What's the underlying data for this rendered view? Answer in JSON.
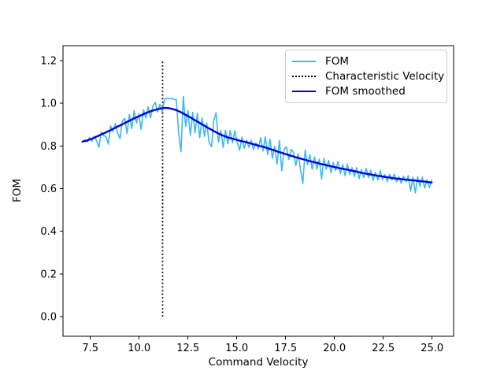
{
  "figure": {
    "background": "#ffffff",
    "xlabel": "Command Velocity",
    "ylabel": "FOM",
    "x_tick_labels": [
      "7.5",
      "10.0",
      "12.5",
      "15.0",
      "17.5",
      "20.0",
      "22.5",
      "25.0"
    ],
    "y_tick_labels": [
      "0.0",
      "0.2",
      "0.4",
      "0.6",
      "0.8",
      "1.0",
      "1.2"
    ]
  },
  "legend": {
    "entries": [
      {
        "label": "FOM",
        "style": "solid",
        "color": "#3db8f0"
      },
      {
        "label": "Characteristic Velocity",
        "style": "dotted",
        "color": "#000000"
      },
      {
        "label": "FOM smoothed",
        "style": "solid",
        "color": "#0000e0"
      }
    ]
  },
  "chart_data": {
    "type": "line",
    "title": "",
    "xlabel": "Command Velocity",
    "ylabel": "FOM",
    "xlim": [
      6.1,
      26.1
    ],
    "ylim": [
      -0.092,
      1.27
    ],
    "x_ticks": [
      7.5,
      10.0,
      12.5,
      15.0,
      17.5,
      20.0,
      22.5,
      25.0
    ],
    "y_ticks": [
      0.0,
      0.2,
      0.4,
      0.6,
      0.8,
      1.0,
      1.2
    ],
    "grid": false,
    "legend_position": "upper right",
    "x_start": 7.1,
    "x_step": 0.12,
    "vline": {
      "name": "Characteristic Velocity",
      "x": 11.2,
      "ymin": 0.0,
      "ymax": 1.2,
      "style": "dotted",
      "color": "#000000",
      "linewidth": 1.8
    },
    "series": [
      {
        "name": "FOM",
        "color": "#3db8f0",
        "linewidth": 1.6,
        "y": [
          0.82,
          0.828,
          0.82,
          0.84,
          0.822,
          0.845,
          0.824,
          0.794,
          0.866,
          0.849,
          0.844,
          0.809,
          0.894,
          0.868,
          0.905,
          0.861,
          0.834,
          0.918,
          0.929,
          0.858,
          0.948,
          0.882,
          0.965,
          0.908,
          0.951,
          0.878,
          0.969,
          0.932,
          0.984,
          0.932,
          0.986,
          1.005,
          0.96,
          0.995,
          0.961,
          1.018,
          1.024,
          1.021,
          1.024,
          1.018,
          1.018,
          0.863,
          0.773,
          1.032,
          0.891,
          0.965,
          0.849,
          0.957,
          0.861,
          0.954,
          0.838,
          0.931,
          0.845,
          0.908,
          0.817,
          0.796,
          0.92,
          0.956,
          0.818,
          0.873,
          0.793,
          0.874,
          0.81,
          0.872,
          0.814,
          0.871,
          0.816,
          0.78,
          0.842,
          0.79,
          0.827,
          0.794,
          0.826,
          0.783,
          0.815,
          0.787,
          0.839,
          0.776,
          0.843,
          0.759,
          0.831,
          0.742,
          0.799,
          0.715,
          0.826,
          0.683,
          0.784,
          0.796,
          0.737,
          0.784,
          0.771,
          0.707,
          0.764,
          0.691,
          0.624,
          0.78,
          0.712,
          0.759,
          0.691,
          0.748,
          0.691,
          0.738,
          0.645,
          0.743,
          0.69,
          0.732,
          0.675,
          0.722,
          0.685,
          0.727,
          0.67,
          0.713,
          0.661,
          0.714,
          0.666,
          0.699,
          0.657,
          0.699,
          0.647,
          0.689,
          0.652,
          0.695,
          0.653,
          0.686,
          0.639,
          0.677,
          0.64,
          0.684,
          0.642,
          0.665,
          0.633,
          0.667,
          0.64,
          0.668,
          0.632,
          0.656,
          0.625,
          0.658,
          0.632,
          0.661,
          0.587,
          0.654,
          0.58,
          0.656,
          0.61,
          0.654,
          0.603,
          0.641,
          0.605,
          0.639
        ]
      },
      {
        "name": "FOM smoothed",
        "color": "#0000e0",
        "linewidth": 2.4,
        "y": [
          0.82,
          0.823,
          0.826,
          0.83,
          0.834,
          0.839,
          0.844,
          0.849,
          0.854,
          0.859,
          0.864,
          0.869,
          0.874,
          0.88,
          0.885,
          0.891,
          0.896,
          0.902,
          0.907,
          0.913,
          0.918,
          0.924,
          0.929,
          0.934,
          0.939,
          0.944,
          0.949,
          0.954,
          0.958,
          0.962,
          0.966,
          0.969,
          0.972,
          0.975,
          0.977,
          0.978,
          0.978,
          0.977,
          0.974,
          0.971,
          0.968,
          0.963,
          0.958,
          0.952,
          0.946,
          0.94,
          0.934,
          0.927,
          0.921,
          0.914,
          0.908,
          0.901,
          0.895,
          0.888,
          0.882,
          0.876,
          0.87,
          0.864,
          0.858,
          0.853,
          0.848,
          0.844,
          0.84,
          0.837,
          0.834,
          0.831,
          0.828,
          0.825,
          0.822,
          0.82,
          0.817,
          0.814,
          0.811,
          0.808,
          0.805,
          0.802,
          0.799,
          0.796,
          0.793,
          0.789,
          0.786,
          0.782,
          0.779,
          0.775,
          0.771,
          0.768,
          0.764,
          0.761,
          0.757,
          0.754,
          0.751,
          0.747,
          0.744,
          0.741,
          0.738,
          0.735,
          0.732,
          0.729,
          0.726,
          0.723,
          0.721,
          0.718,
          0.715,
          0.713,
          0.71,
          0.707,
          0.705,
          0.702,
          0.7,
          0.697,
          0.695,
          0.693,
          0.691,
          0.689,
          0.686,
          0.684,
          0.682,
          0.679,
          0.677,
          0.674,
          0.672,
          0.67,
          0.668,
          0.666,
          0.664,
          0.662,
          0.66,
          0.659,
          0.657,
          0.655,
          0.653,
          0.652,
          0.65,
          0.648,
          0.647,
          0.646,
          0.645,
          0.643,
          0.642,
          0.641,
          0.64,
          0.639,
          0.638,
          0.636,
          0.635,
          0.634,
          0.633,
          0.631,
          0.63,
          0.629
        ]
      }
    ]
  }
}
